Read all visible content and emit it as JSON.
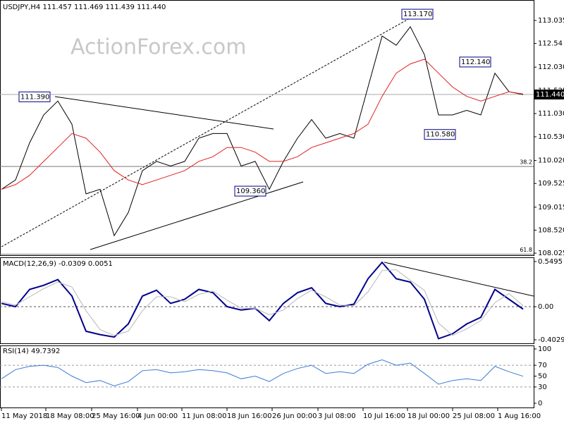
{
  "watermark": "ActionForex.com",
  "chart_data": [
    {
      "type": "line",
      "title": "USDJPY,H4  111.457 111.469 111.439 111.440",
      "xlim": [
        -0.1,
        37.75
      ],
      "xticks": [
        {
          "value": 0,
          "label": "11 May 2018"
        },
        {
          "value": 3.15,
          "label": "18 May 08:00"
        },
        {
          "value": 6.4,
          "label": "25 May 16:00"
        },
        {
          "value": 9.65,
          "label": "4 Jun 00:00"
        },
        {
          "value": 12.8,
          "label": "11 Jun 08:00"
        },
        {
          "value": 16,
          "label": "18 Jun 16:00"
        },
        {
          "value": 19.2,
          "label": "26 Jun 00:00"
        },
        {
          "value": 22.45,
          "label": "3 Jul 08:00"
        },
        {
          "value": 25.65,
          "label": "10 Jul 16:00"
        },
        {
          "value": 28.8,
          "label": "18 Jul 00:00"
        },
        {
          "value": 32,
          "label": "25 Jul 08:00"
        },
        {
          "value": 35.2,
          "label": "1 Aug 16:00"
        }
      ],
      "ylim": [
        107.98,
        113.475
      ],
      "yticks": [
        113.035,
        112.54,
        {
          "value": 112.03,
          "label": "112.030"
        },
        111.525,
        {
          "value": 111.03,
          "label": "111.030"
        },
        {
          "value": 110.53,
          "label": "110.530"
        },
        {
          "value": 110.02,
          "label": "110.020"
        },
        109.525,
        109.015,
        {
          "value": 108.52,
          "label": "108.520"
        },
        108.025
      ],
      "series": [
        {
          "name": "Close",
          "color": "#000000",
          "values": [
            109.4,
            109.6,
            110.4,
            111.0,
            111.3,
            110.8,
            109.3,
            109.4,
            108.4,
            108.9,
            109.8,
            110.0,
            109.9,
            110.0,
            110.5,
            110.6,
            110.6,
            109.9,
            110.0,
            109.4,
            110.0,
            110.5,
            110.9,
            110.5,
            110.6,
            110.5,
            111.6,
            112.7,
            112.5,
            112.9,
            112.3,
            111.0,
            111.0,
            111.1,
            111.0,
            111.9,
            111.5,
            111.44
          ]
        },
        {
          "name": "MA",
          "color": "#e02020",
          "values": [
            109.4,
            109.5,
            109.7,
            110.0,
            110.3,
            110.6,
            110.5,
            110.2,
            109.8,
            109.6,
            109.5,
            109.6,
            109.7,
            109.8,
            110.0,
            110.1,
            110.3,
            110.3,
            110.2,
            110.0,
            110.0,
            110.1,
            110.3,
            110.4,
            110.5,
            110.6,
            110.8,
            111.4,
            111.9,
            112.1,
            112.2,
            111.9,
            111.6,
            111.4,
            111.3,
            111.4,
            111.5,
            111.45
          ]
        }
      ],
      "last_price": {
        "value": 111.44,
        "label": "111.440"
      },
      "annotations": [
        {
          "value": 113.17,
          "label": "113.170"
        },
        {
          "value": 112.14,
          "label": "112.140"
        },
        {
          "value": 111.39,
          "label": "111.390"
        },
        {
          "value": 110.58,
          "label": "110.580"
        },
        {
          "value": 109.36,
          "label": "109.360"
        }
      ],
      "levels": [
        {
          "value": 109.89,
          "label": "38.2"
        },
        {
          "value": 108.0,
          "label": "61.8"
        }
      ]
    },
    {
      "type": "line",
      "title": "MACD(12,26,9) -0.0309 0.0051",
      "ylim": [
        -0.4465,
        0.601
      ],
      "yticks": [
        0.5495,
        {
          "value": 0,
          "label": "0.00"
        },
        -0.4029
      ],
      "series": [
        {
          "name": "MACD",
          "color": "#00008b",
          "values": [
            0.04,
            0,
            0.21,
            0.26,
            0.33,
            0.13,
            -0.3,
            -0.34,
            -0.37,
            -0.21,
            0.13,
            0.2,
            0.04,
            0.09,
            0.21,
            0.17,
            0,
            -0.04,
            -0.02,
            -0.17,
            0.04,
            0.17,
            0.23,
            0.04,
            0,
            0.03,
            0.34,
            0.54,
            0.34,
            0.3,
            0.09,
            -0.39,
            -0.33,
            -0.21,
            -0.13,
            0.21,
            0.09,
            -0.03
          ]
        },
        {
          "name": "Signal",
          "color": "#b8b8b8",
          "values": [
            0.06,
            0.02,
            0.12,
            0.22,
            0.3,
            0.24,
            -0.05,
            -0.28,
            -0.35,
            -0.3,
            -0.05,
            0.12,
            0.12,
            0.06,
            0.15,
            0.19,
            0.08,
            -0.02,
            -0.02,
            -0.1,
            -0.04,
            0.1,
            0.2,
            0.12,
            0.02,
            0.01,
            0.18,
            0.44,
            0.45,
            0.32,
            0.2,
            -0.2,
            -0.35,
            -0.27,
            -0.17,
            0.05,
            0.16,
            0.01
          ]
        }
      ]
    },
    {
      "type": "line",
      "title": "RSI(14) 49.7392",
      "ylim": [
        -7.8,
        106.5
      ],
      "yticks": [
        100,
        70,
        50,
        30,
        0
      ],
      "dashed_levels": [
        70,
        30
      ],
      "series": [
        {
          "name": "RSI",
          "color": "#3a7bd5",
          "values": [
            45,
            62,
            68,
            70,
            66,
            50,
            38,
            42,
            32,
            40,
            60,
            62,
            56,
            58,
            62,
            60,
            56,
            45,
            50,
            40,
            55,
            64,
            70,
            55,
            58,
            55,
            72,
            80,
            70,
            74,
            55,
            35,
            42,
            45,
            42,
            68,
            58,
            49.74
          ]
        }
      ]
    }
  ]
}
